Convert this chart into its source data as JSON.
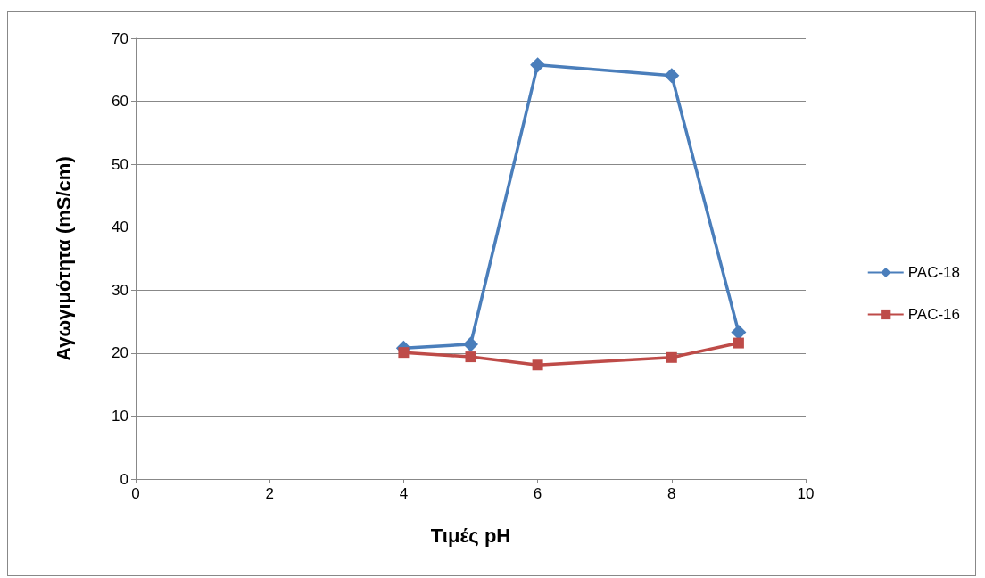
{
  "chart_data": {
    "type": "line",
    "xlabel": "Τιμές pH",
    "ylabel": "Αγωγιμότητα (mS/cm)",
    "x": [
      4,
      5,
      6,
      8,
      9
    ],
    "series": [
      {
        "name": "PAC-18",
        "color": "#4a7ebb",
        "marker": "diamond",
        "values": [
          20.8,
          21.4,
          65.8,
          64.1,
          23.3
        ]
      },
      {
        "name": "PAC-16",
        "color": "#be4b48",
        "marker": "square",
        "values": [
          20.1,
          19.4,
          18.1,
          19.3,
          21.6
        ]
      }
    ],
    "xlim": [
      0,
      10
    ],
    "xticks": [
      0,
      2,
      4,
      6,
      8,
      10
    ],
    "ylim": [
      0,
      70
    ],
    "yticks": [
      0,
      10,
      20,
      30,
      40,
      50,
      60,
      70
    ],
    "grid": "y",
    "legend": "right"
  }
}
